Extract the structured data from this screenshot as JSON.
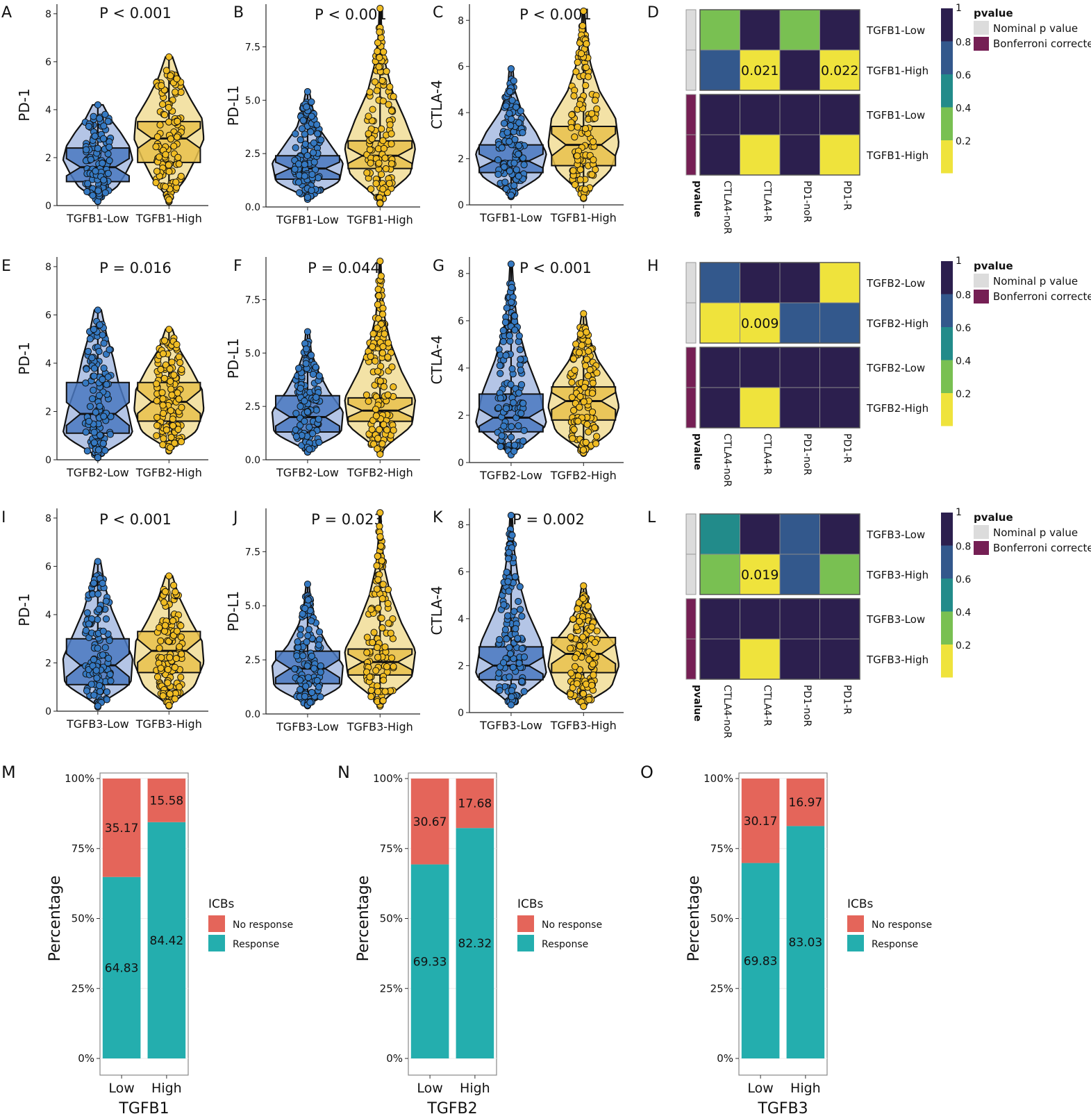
{
  "colors": {
    "low_box": "#4a78c0",
    "low_violin": "#b4c5e6",
    "low_point": "#3579c2",
    "high_box": "#e8c14c",
    "high_violin": "#f3e2a6",
    "high_point": "#f0bc23",
    "no_response": "#e4655a",
    "response": "#24aeae",
    "heat_1": "#2c1f4e",
    "heat_08": "#33588c",
    "heat_06": "#228b8a",
    "heat_04": "#79c052",
    "heat_02": "#efe33c",
    "nominal": "#dcdcdc",
    "bonferroni": "#751f54"
  },
  "chart_data": [
    {
      "panel": "A",
      "type": "violin",
      "pvalue": "P < 0.001",
      "ylabel": "PD-1",
      "categories": [
        "TGFB1-Low",
        "TGFB1-High"
      ],
      "ylim": [
        0,
        8.4
      ],
      "yticks": [
        0,
        2,
        4,
        6,
        8
      ],
      "yticklabels": [
        "0",
        "2",
        "4",
        "6",
        "8"
      ],
      "groups": [
        {
          "min": 0.2,
          "q1": 1.0,
          "median": 1.6,
          "q3": 2.4,
          "max": 4.2,
          "kde": [
            0.25,
            0.55,
            0.8,
            1.0,
            0.9,
            0.65,
            0.35,
            0.15
          ]
        },
        {
          "min": 0.2,
          "q1": 1.8,
          "median": 2.8,
          "q3": 3.5,
          "max": 6.2,
          "kde": [
            0.2,
            0.45,
            0.75,
            1.0,
            0.95,
            0.6,
            0.3,
            0.1
          ]
        }
      ]
    },
    {
      "panel": "B",
      "type": "violin",
      "pvalue": "P < 0.001",
      "ylabel": "PD-L1",
      "categories": [
        "TGFB1-Low",
        "TGFB1-High"
      ],
      "ylim": [
        0,
        9.5
      ],
      "yticks": [
        0,
        2.5,
        5,
        7.5
      ],
      "yticklabels": [
        "0.0",
        "2.5",
        "5.0",
        "7.5"
      ],
      "groups": [
        {
          "min": 0.4,
          "q1": 1.3,
          "median": 1.8,
          "q3": 2.4,
          "max": 5.4,
          "kde": [
            0.45,
            0.9,
            1.0,
            0.65,
            0.3,
            0.15,
            0.05
          ]
        },
        {
          "min": 0.2,
          "q1": 1.8,
          "median": 2.4,
          "q3": 3.1,
          "max": 9.3,
          "kde": [
            0.35,
            0.85,
            1.0,
            0.7,
            0.35,
            0.15,
            0.05,
            0.02
          ]
        }
      ]
    },
    {
      "panel": "C",
      "type": "violin",
      "pvalue": "P < 0.001",
      "ylabel": "CTLA-4",
      "categories": [
        "TGFB1-Low",
        "TGFB1-High"
      ],
      "ylim": [
        0,
        8.7
      ],
      "yticks": [
        0,
        2,
        4,
        6,
        8
      ],
      "yticklabels": [
        "0",
        "2",
        "4",
        "6",
        "8"
      ],
      "groups": [
        {
          "min": 0.4,
          "q1": 1.4,
          "median": 1.9,
          "q3": 2.6,
          "max": 5.9,
          "kde": [
            0.4,
            0.85,
            1.0,
            0.7,
            0.3,
            0.1,
            0.05
          ]
        },
        {
          "min": 0.3,
          "q1": 1.7,
          "median": 2.6,
          "q3": 3.4,
          "max": 8.4,
          "kde": [
            0.3,
            0.75,
            1.0,
            0.9,
            0.45,
            0.2,
            0.08,
            0.03
          ]
        }
      ]
    },
    {
      "panel": "E",
      "type": "violin",
      "pvalue": "P = 0.016",
      "ylabel": "PD-1",
      "categories": [
        "TGFB2-Low",
        "TGFB2-High"
      ],
      "ylim": [
        0,
        8.4
      ],
      "yticks": [
        0,
        2,
        4,
        6,
        8
      ],
      "yticklabels": [
        "0",
        "2",
        "4",
        "6",
        "8"
      ],
      "groups": [
        {
          "min": 0.1,
          "q1": 1.1,
          "median": 1.9,
          "q3": 3.2,
          "max": 6.2,
          "kde": [
            0.55,
            1.0,
            0.85,
            0.6,
            0.45,
            0.25,
            0.1
          ]
        },
        {
          "min": 0.4,
          "q1": 1.6,
          "median": 2.4,
          "q3": 3.2,
          "max": 5.4,
          "kde": [
            0.4,
            0.8,
            1.0,
            0.95,
            0.65,
            0.3,
            0.1
          ]
        }
      ]
    },
    {
      "panel": "F",
      "type": "violin",
      "pvalue": "P = 0.044",
      "ylabel": "PD-L1",
      "categories": [
        "TGFB2-Low",
        "TGFB2-High"
      ],
      "ylim": [
        0,
        9.5
      ],
      "yticks": [
        0,
        2.5,
        5,
        7.5
      ],
      "yticklabels": [
        "0.0",
        "2.5",
        "5.0",
        "7.5"
      ],
      "groups": [
        {
          "min": 0.4,
          "q1": 1.3,
          "median": 2.0,
          "q3": 3.0,
          "max": 6.0,
          "kde": [
            0.5,
            0.95,
            1.0,
            0.6,
            0.3,
            0.1,
            0.05
          ]
        },
        {
          "min": 0.3,
          "q1": 1.8,
          "median": 2.3,
          "q3": 2.9,
          "max": 9.3,
          "kde": [
            0.4,
            0.9,
            1.0,
            0.6,
            0.3,
            0.12,
            0.05,
            0.02
          ]
        }
      ]
    },
    {
      "panel": "G",
      "type": "violin",
      "pvalue": "P < 0.001",
      "ylabel": "CTLA-4",
      "categories": [
        "TGFB2-Low",
        "TGFB2-High"
      ],
      "ylim": [
        0,
        8.7
      ],
      "yticks": [
        0,
        2,
        4,
        6,
        8
      ],
      "yticklabels": [
        "0",
        "2",
        "4",
        "6",
        "8"
      ],
      "groups": [
        {
          "min": 0.3,
          "q1": 1.3,
          "median": 1.9,
          "q3": 2.9,
          "max": 8.4,
          "kde": [
            0.55,
            1.0,
            0.8,
            0.45,
            0.2,
            0.08,
            0.03
          ]
        },
        {
          "min": 0.4,
          "q1": 1.8,
          "median": 2.6,
          "q3": 3.2,
          "max": 6.3,
          "kde": [
            0.35,
            0.8,
            1.0,
            0.85,
            0.4,
            0.15,
            0.05
          ]
        }
      ]
    },
    {
      "panel": "I",
      "type": "violin",
      "pvalue": "P < 0.001",
      "ylabel": "PD-1",
      "categories": [
        "TGFB3-Low",
        "TGFB3-High"
      ],
      "ylim": [
        0,
        8.4
      ],
      "yticks": [
        0,
        2,
        4,
        6,
        8
      ],
      "yticklabels": [
        "0",
        "2",
        "4",
        "6",
        "8"
      ],
      "groups": [
        {
          "min": 0.2,
          "q1": 1.1,
          "median": 1.9,
          "q3": 3.0,
          "max": 6.2,
          "kde": [
            0.45,
            0.95,
            1.0,
            0.7,
            0.4,
            0.2,
            0.08
          ]
        },
        {
          "min": 0.2,
          "q1": 1.6,
          "median": 2.5,
          "q3": 3.3,
          "max": 5.6,
          "kde": [
            0.35,
            0.75,
            1.0,
            0.95,
            0.6,
            0.3,
            0.1
          ]
        }
      ]
    },
    {
      "panel": "J",
      "type": "violin",
      "pvalue": "P = 0.023",
      "ylabel": "PD-L1",
      "categories": [
        "TGFB3-Low",
        "TGFB3-High"
      ],
      "ylim": [
        0,
        9.5
      ],
      "yticks": [
        0,
        2.5,
        5,
        7.5
      ],
      "yticklabels": [
        "0.0",
        "2.5",
        "5.0",
        "7.5"
      ],
      "groups": [
        {
          "min": 0.4,
          "q1": 1.4,
          "median": 2.1,
          "q3": 2.9,
          "max": 6.0,
          "kde": [
            0.5,
            0.95,
            1.0,
            0.55,
            0.25,
            0.1,
            0.04
          ]
        },
        {
          "min": 0.4,
          "q1": 1.8,
          "median": 2.4,
          "q3": 3.0,
          "max": 9.3,
          "kde": [
            0.4,
            0.9,
            1.0,
            0.6,
            0.3,
            0.12,
            0.05,
            0.02
          ]
        }
      ]
    },
    {
      "panel": "K",
      "type": "violin",
      "pvalue": "P = 0.002",
      "ylabel": "CTLA-4",
      "categories": [
        "TGFB3-Low",
        "TGFB3-High"
      ],
      "ylim": [
        0,
        8.7
      ],
      "yticks": [
        0,
        2,
        4,
        6,
        8
      ],
      "yticklabels": [
        "0",
        "2",
        "4",
        "6",
        "8"
      ],
      "groups": [
        {
          "min": 0.3,
          "q1": 1.4,
          "median": 2.0,
          "q3": 2.8,
          "max": 8.4,
          "kde": [
            0.5,
            1.0,
            0.85,
            0.45,
            0.2,
            0.08,
            0.03
          ]
        },
        {
          "min": 0.3,
          "q1": 1.7,
          "median": 2.5,
          "q3": 3.2,
          "max": 5.4,
          "kde": [
            0.35,
            0.8,
            1.0,
            0.9,
            0.45,
            0.15,
            0.05
          ]
        }
      ]
    },
    {
      "panel": "D",
      "type": "heatmap",
      "groups": [
        "TGFB1-Low",
        "TGFB1-High",
        "TGFB1-Low",
        "TGFB1-High"
      ],
      "columns": [
        "CTLA4-noR",
        "CTLA4-R",
        "PD1-noR",
        "PD1-R"
      ],
      "values": [
        [
          0.35,
          1,
          0.35,
          1
        ],
        [
          0.7,
          0.021,
          1,
          0.022
        ],
        [
          1,
          1,
          1,
          1
        ],
        [
          1,
          0.03,
          1,
          0.03
        ]
      ],
      "labels": [
        [
          "",
          "",
          "",
          ""
        ],
        [
          "",
          "0.021",
          "",
          "0.022"
        ],
        [
          "",
          "",
          "",
          ""
        ],
        [
          "",
          "",
          "",
          ""
        ]
      ],
      "row_bar_label": "pvalue",
      "legend_title": "pvalue",
      "legend_ticks": [
        "1",
        "0.8",
        "0.6",
        "0.4",
        "0.2"
      ],
      "legend_items": [
        "Nominal p value",
        "Bonferroni corrected"
      ]
    },
    {
      "panel": "H",
      "type": "heatmap",
      "groups": [
        "TGFB2-Low",
        "TGFB2-High",
        "TGFB2-Low",
        "TGFB2-High"
      ],
      "columns": [
        "CTLA4-noR",
        "CTLA4-R",
        "PD1-noR",
        "PD1-R"
      ],
      "values": [
        [
          0.7,
          1,
          1,
          0.05
        ],
        [
          0.05,
          0.009,
          0.7,
          0.7
        ],
        [
          1,
          1,
          1,
          1
        ],
        [
          1,
          0.03,
          1,
          1
        ]
      ],
      "labels": [
        [
          "",
          "",
          "",
          ""
        ],
        [
          "",
          "0.009",
          "",
          ""
        ],
        [
          "",
          "",
          "",
          ""
        ],
        [
          "",
          "",
          "",
          ""
        ]
      ],
      "row_bar_label": "pvalue",
      "legend_title": "pvalue",
      "legend_ticks": [
        "1",
        "0.8",
        "0.6",
        "0.4",
        "0.2"
      ],
      "legend_items": [
        "Nominal p value",
        "Bonferroni corrected"
      ]
    },
    {
      "panel": "L",
      "type": "heatmap",
      "groups": [
        "TGFB3-Low",
        "TGFB3-High",
        "TGFB3-Low",
        "TGFB3-High"
      ],
      "columns": [
        "CTLA4-noR",
        "CTLA4-R",
        "PD1-noR",
        "PD1-R"
      ],
      "values": [
        [
          0.5,
          1,
          0.7,
          1
        ],
        [
          0.35,
          0.019,
          0.7,
          0.35
        ],
        [
          1,
          1,
          1,
          1
        ],
        [
          1,
          0.03,
          1,
          1
        ]
      ],
      "labels": [
        [
          "",
          "",
          "",
          ""
        ],
        [
          "",
          "0.019",
          "",
          ""
        ],
        [
          "",
          "",
          "",
          ""
        ],
        [
          "",
          "",
          "",
          ""
        ]
      ],
      "row_bar_label": "pvalue",
      "legend_title": "pvalue",
      "legend_ticks": [
        "1",
        "0.8",
        "0.6",
        "0.4",
        "0.2"
      ],
      "legend_items": [
        "Nominal p value",
        "Bonferroni corrected"
      ]
    },
    {
      "panel": "M",
      "type": "bar",
      "stacked": true,
      "xlabel": "TGFB1",
      "ylabel": "Percentage",
      "categories": [
        "Low",
        "High"
      ],
      "yticks": [
        "0%",
        "25%",
        "50%",
        "75%",
        "100%"
      ],
      "series": [
        {
          "name": "No response",
          "values": [
            35.17,
            15.58
          ]
        },
        {
          "name": "Response",
          "values": [
            64.83,
            84.42
          ]
        }
      ],
      "legend_title": "ICBs"
    },
    {
      "panel": "N",
      "type": "bar",
      "stacked": true,
      "xlabel": "TGFB2",
      "ylabel": "Percentage",
      "categories": [
        "Low",
        "High"
      ],
      "yticks": [
        "0%",
        "25%",
        "50%",
        "75%",
        "100%"
      ],
      "series": [
        {
          "name": "No response",
          "values": [
            30.67,
            17.68
          ]
        },
        {
          "name": "Response",
          "values": [
            69.33,
            82.32
          ]
        }
      ],
      "legend_title": "ICBs"
    },
    {
      "panel": "O",
      "type": "bar",
      "stacked": true,
      "xlabel": "TGFB3",
      "ylabel": "Percentage",
      "categories": [
        "Low",
        "High"
      ],
      "yticks": [
        "0%",
        "25%",
        "50%",
        "75%",
        "100%"
      ],
      "series": [
        {
          "name": "No response",
          "values": [
            30.17,
            16.97
          ]
        },
        {
          "name": "Response",
          "values": [
            69.83,
            83.03
          ]
        }
      ],
      "legend_title": "ICBs"
    }
  ]
}
